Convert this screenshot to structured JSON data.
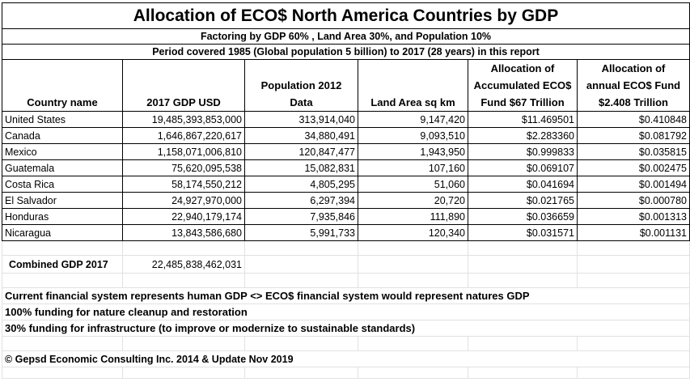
{
  "sheet": {
    "title": "Allocation of ECO$ North America Countries by GDP",
    "subtitle1": "Factoring by GDP 60% , Land Area 30%, and Population 10%",
    "subtitle2": "Period covered 1985 (Global population 5 billion) to 2017 (28 years) in this report",
    "headers": {
      "country": "Country name",
      "gdp": "2017 GDP USD",
      "population_l1": "Population 2012",
      "population_l2": "Data",
      "land": "Land Area sq km",
      "accum_l1": "Allocation of",
      "accum_l2": "Accumulated ECO$",
      "accum_l3": "Fund $67 Trillion",
      "annual_l1": "Allocation of",
      "annual_l2": "annual ECO$ Fund",
      "annual_l3": "$2.408 Trillion"
    },
    "rows": [
      {
        "country": "United States",
        "gdp": "19,485,393,853,000",
        "population": "313,914,040",
        "land": "9,147,420",
        "accum": "$11.469501",
        "annual": "$0.410848"
      },
      {
        "country": "Canada",
        "gdp": "1,646,867,220,617",
        "population": "34,880,491",
        "land": "9,093,510",
        "accum": "$2.283360",
        "annual": "$0.081792"
      },
      {
        "country": "Mexico",
        "gdp": "1,158,071,006,810",
        "population": "120,847,477",
        "land": "1,943,950",
        "accum": "$0.999833",
        "annual": "$0.035815"
      },
      {
        "country": "Guatemala",
        "gdp": "75,620,095,538",
        "population": "15,082,831",
        "land": "107,160",
        "accum": "$0.069107",
        "annual": "$0.002475"
      },
      {
        "country": "Costa Rica",
        "gdp": "58,174,550,212",
        "population": "4,805,295",
        "land": "51,060",
        "accum": "$0.041694",
        "annual": "$0.001494"
      },
      {
        "country": "El Salvador",
        "gdp": "24,927,970,000",
        "population": "6,297,394",
        "land": "20,720",
        "accum": "$0.021765",
        "annual": "$0.000780"
      },
      {
        "country": "Honduras",
        "gdp": "22,940,179,174",
        "population": "7,935,846",
        "land": "111,890",
        "accum": "$0.036659",
        "annual": "$0.001313"
      },
      {
        "country": "Nicaragua",
        "gdp": "13,843,586,680",
        "population": "5,991,733",
        "land": "120,340",
        "accum": "$0.031571",
        "annual": "$0.001131"
      }
    ],
    "combined_label": "Combined GDP 2017",
    "combined_value": "22,485,838,462,031",
    "notes": [
      "Current financial system represents human GDP <> ECO$ financial system would represent natures GDP",
      "100% funding for nature cleanup and restoration",
      "30% funding for infrastructure (to improve or modernize to sustainable standards)"
    ],
    "copyright": "© Gepsd Economic Consulting Inc. 2014 & Update Nov 2019"
  }
}
